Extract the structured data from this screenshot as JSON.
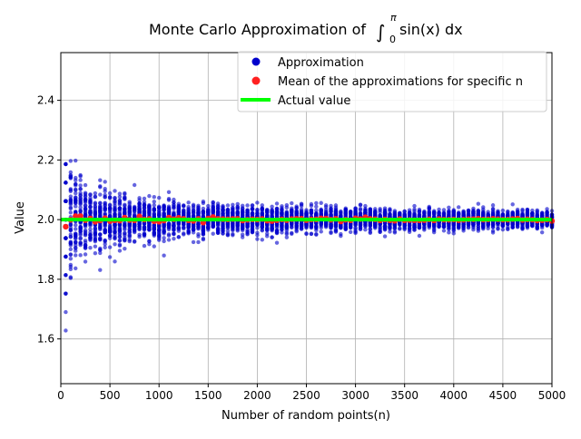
{
  "chart_data": {
    "type": "scatter",
    "title_prefix": "Monte Carlo Approximation of ",
    "title_integral": "∫",
    "title_upper": "π",
    "title_lower": "0",
    "title_integrand": "sin(x) dx",
    "xlabel": "Number of random points(n)",
    "ylabel": "Value",
    "xlim": [
      0,
      5000
    ],
    "ylim": [
      1.45,
      2.56
    ],
    "x_ticks": [
      0,
      500,
      1000,
      1500,
      2000,
      2500,
      3000,
      3500,
      4000,
      4500,
      5000
    ],
    "y_ticks": [
      1.6,
      1.8,
      2.0,
      2.2,
      2.4
    ],
    "grid": true,
    "legend_placement": "top-right",
    "legend": [
      {
        "label": "Approximation",
        "kind": "marker",
        "color": "#0000cc"
      },
      {
        "label": "Mean of the approximations for specific n",
        "kind": "marker",
        "color": "#ff2020"
      },
      {
        "label": "Actual value",
        "kind": "line",
        "color": "#00ff00"
      }
    ],
    "actual_value": 2.0,
    "n_start": 50,
    "n_step": 50,
    "samples_per_n": 50,
    "approx_color": "#0000cc",
    "mean_color": "#ff2020",
    "actual_color": "#00ff00",
    "series": [
      {
        "name": "Approximation",
        "x_range": [
          50,
          5000
        ],
        "y_range": [
          1.5,
          2.51
        ]
      },
      {
        "name": "Mean of the approximations for specific n",
        "y_center": 2.0
      },
      {
        "name": "Actual value",
        "y": 2.0
      }
    ]
  }
}
